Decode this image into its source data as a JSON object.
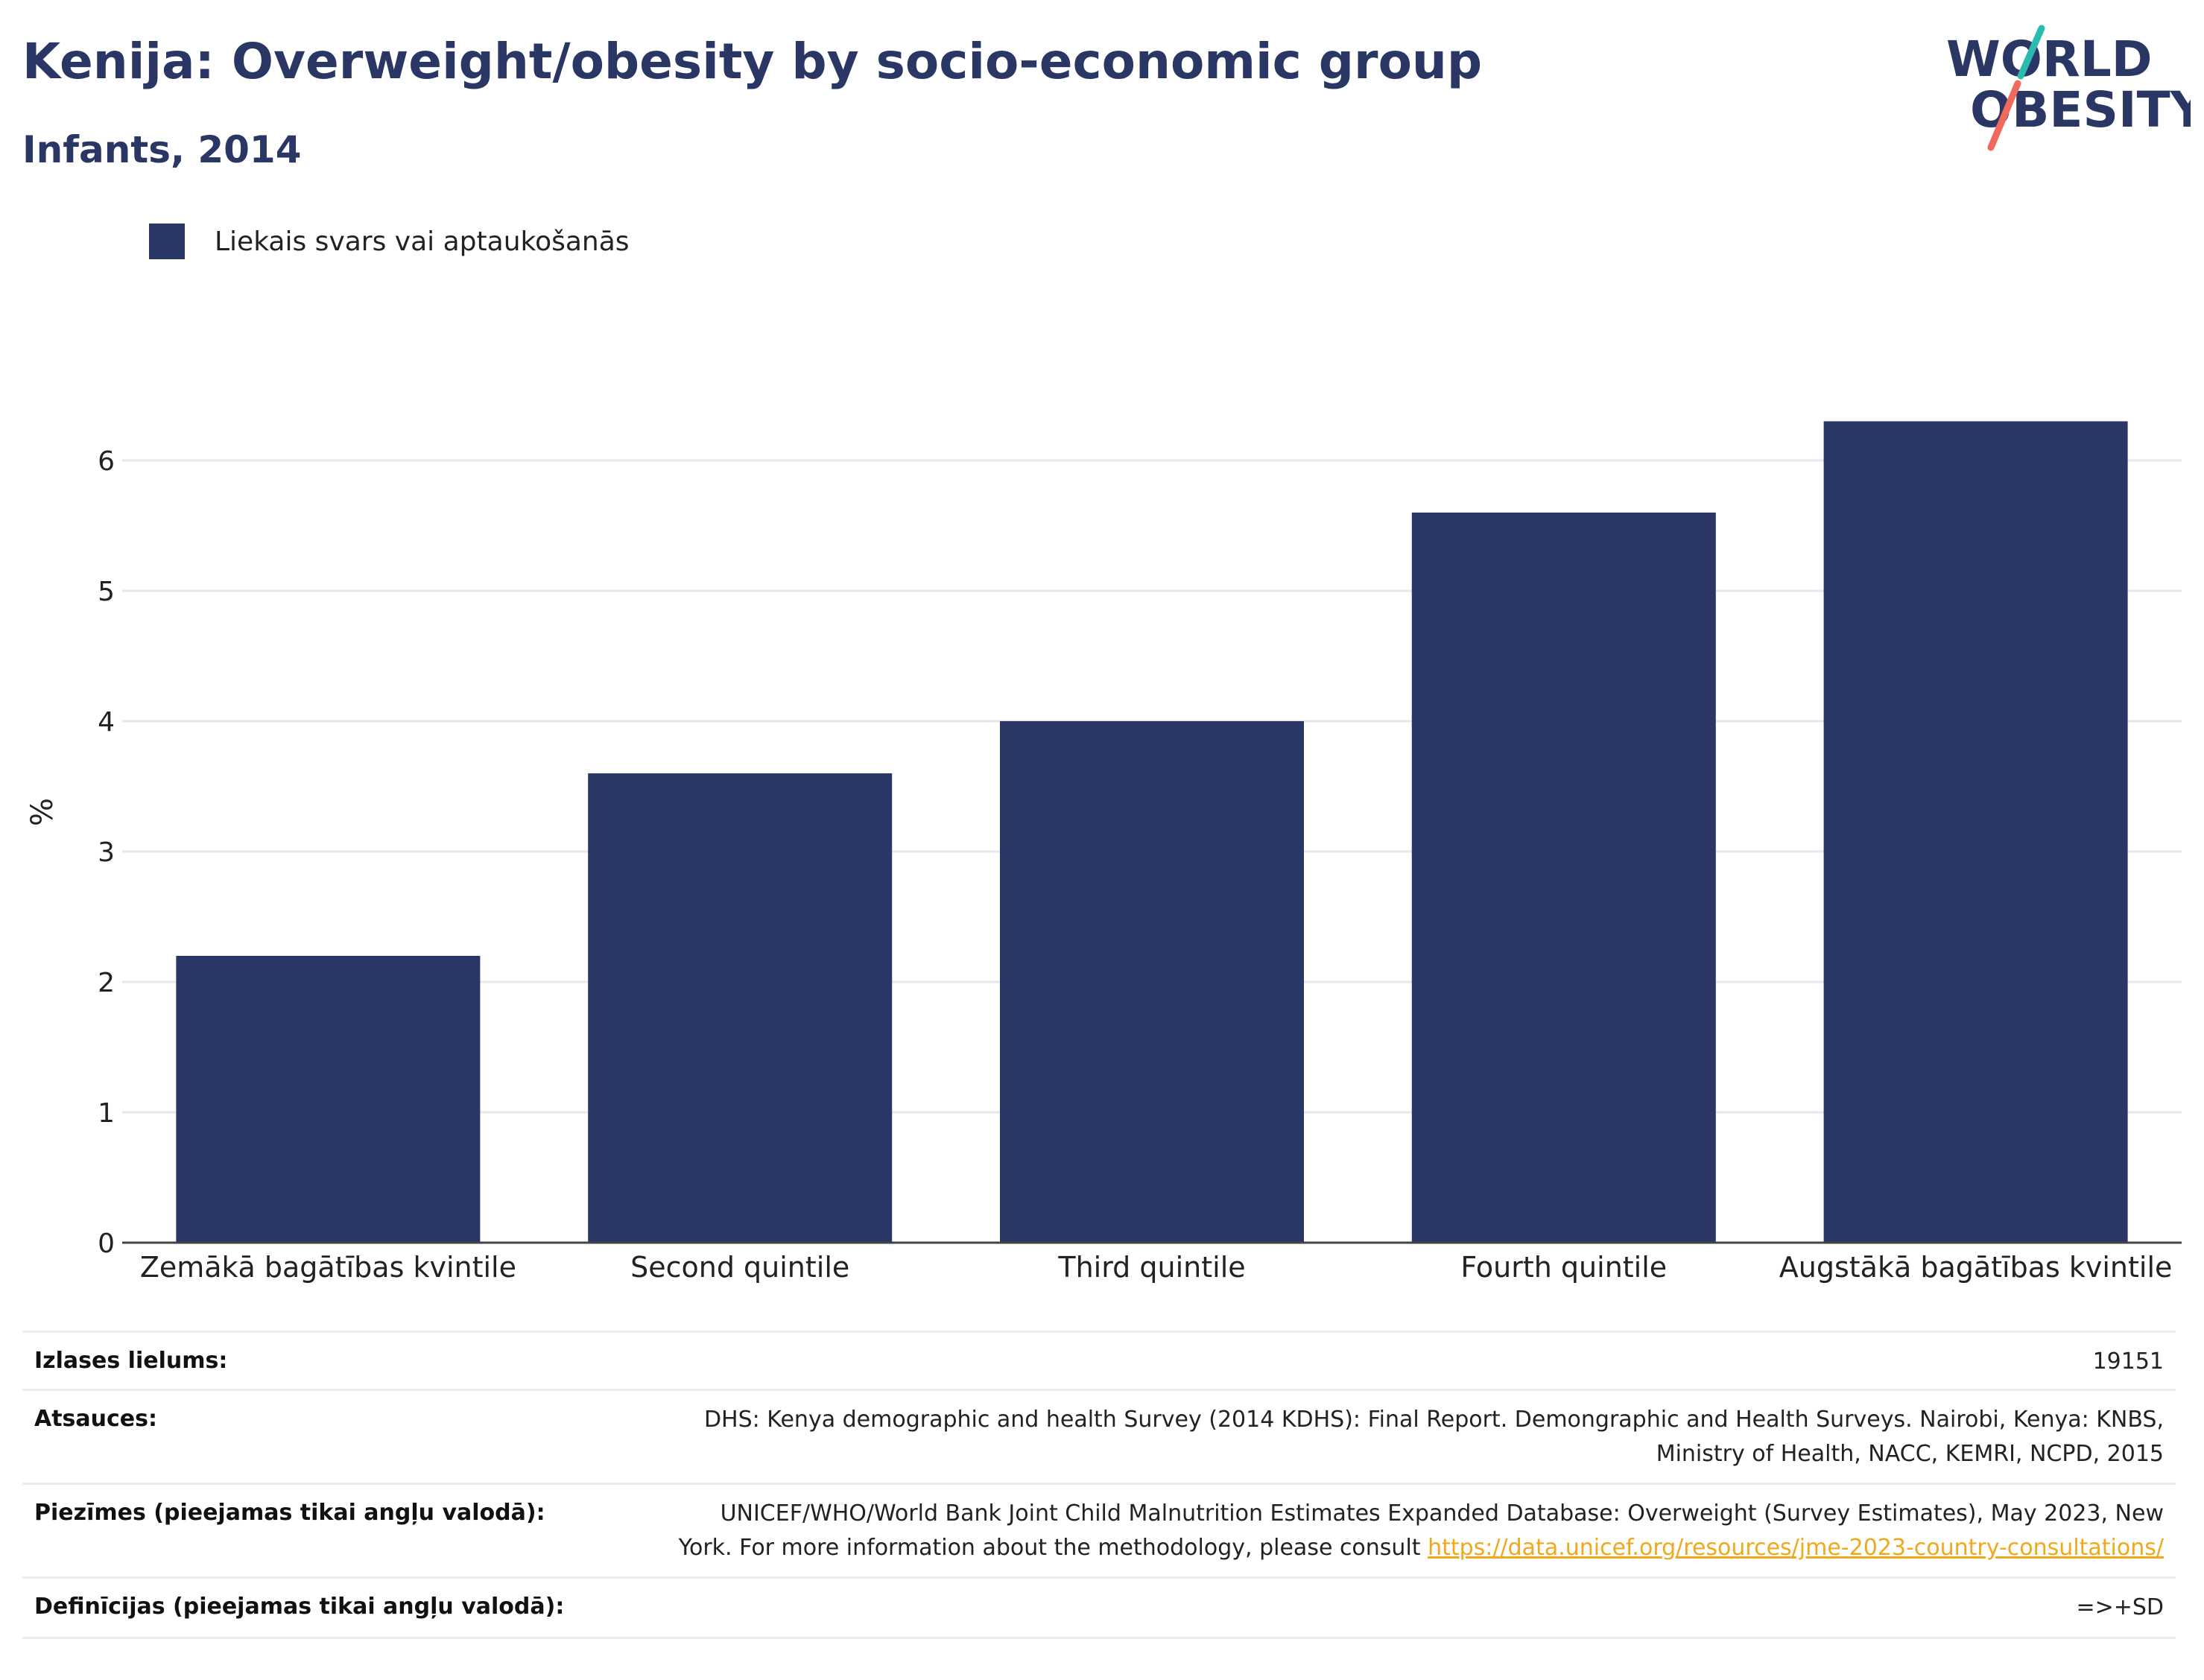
{
  "header": {
    "title": "Kenija: Overweight/obesity by socio-economic group",
    "subtitle": "Infants, 2014"
  },
  "logo": {
    "line1": "WORLD",
    "line2": "OBESITY",
    "colors": {
      "text": "#2a3663",
      "slash_top": "#2bb9b0",
      "slash_bottom": "#ef6a5a"
    }
  },
  "colors": {
    "bar": "#2a3663",
    "grid": "#e6e8ee",
    "axis": "#444444"
  },
  "chart_data": {
    "type": "bar",
    "categories": [
      "Zemākā bagātības kvintile",
      "Second quintile",
      "Third quintile",
      "Fourth quintile",
      "Augstākā bagātības kvintile"
    ],
    "series": [
      {
        "name": "Liekais svars vai aptaukošanās",
        "values": [
          2.2,
          3.6,
          4.0,
          5.6,
          6.3
        ]
      }
    ],
    "ylabel": "%",
    "xlabel": "",
    "ylim": [
      0,
      6.6
    ],
    "yticks": [
      0,
      1,
      2,
      3,
      4,
      5,
      6
    ],
    "grid": true,
    "legend_position": "top-left"
  },
  "meta": {
    "sample_size": {
      "label": "Izlases lielums:",
      "value": "19151"
    },
    "sources": {
      "label": "Atsauces:",
      "line1": "DHS: Kenya demographic and health Survey (2014 KDHS): Final Report. Demongraphic and Health Surveys. Nairobi, Kenya: KNBS,",
      "line2": "Ministry of Health, NACC, KEMRI, NCPD, 2015"
    },
    "notes": {
      "label": "Piezīmes (pieejamas tikai angļu valodā):",
      "line1": "UNICEF/WHO/World Bank Joint Child Malnutrition Estimates Expanded Database: Overweight (Survey Estimates), May 2023, New",
      "line2_prefix": "York. For more information about the methodology, please consult ",
      "link": "https://data.unicef.org/resources/jme-2023-country-consultations/"
    },
    "definitions": {
      "label": "Definīcijas (pieejamas tikai angļu valodā):",
      "value": "=>+SD"
    }
  }
}
